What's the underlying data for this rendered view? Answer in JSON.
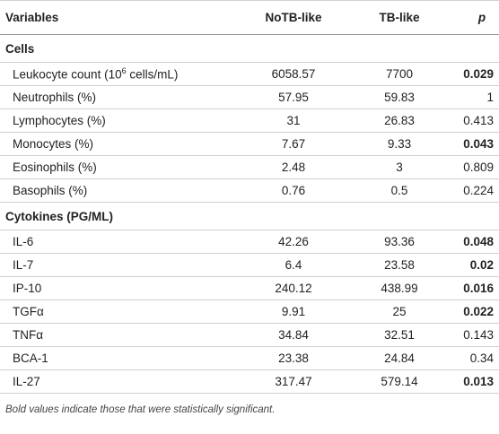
{
  "header": {
    "variable": "Variables",
    "notb": "NoTB-like",
    "tb": "TB-like",
    "p": "p"
  },
  "sections": [
    {
      "title": "Cells",
      "rows": [
        {
          "variable": {
            "text": "Leukocyte count (10",
            "sup": "6",
            "after": " cells/mL)"
          },
          "notb": "6058.57",
          "tb": "7700",
          "p": "0.029",
          "p_bold": true
        },
        {
          "variable": "Neutrophils (%)",
          "notb": "57.95",
          "tb": "59.83",
          "p": "1",
          "p_bold": false
        },
        {
          "variable": "Lymphocytes (%)",
          "notb": "31",
          "tb": "26.83",
          "p": "0.413",
          "p_bold": false
        },
        {
          "variable": "Monocytes (%)",
          "notb": "7.67",
          "tb": "9.33",
          "p": "0.043",
          "p_bold": true
        },
        {
          "variable": "Eosinophils (%)",
          "notb": "2.48",
          "tb": "3",
          "p": "0.809",
          "p_bold": false
        },
        {
          "variable": "Basophils (%)",
          "notb": "0.76",
          "tb": "0.5",
          "p": "0.224",
          "p_bold": false
        }
      ]
    },
    {
      "title": "Cytokines (PG/ML)",
      "rows": [
        {
          "variable": "IL-6",
          "notb": "42.26",
          "tb": "93.36",
          "p": "0.048",
          "p_bold": true
        },
        {
          "variable": "IL-7",
          "notb": "6.4",
          "tb": "23.58",
          "p": "0.02",
          "p_bold": true
        },
        {
          "variable": "IP-10",
          "notb": "240.12",
          "tb": "438.99",
          "p": "0.016",
          "p_bold": true
        },
        {
          "variable": "TGFα",
          "notb": "9.91",
          "tb": "25",
          "p": "0.022",
          "p_bold": true
        },
        {
          "variable": "TNFα",
          "notb": "34.84",
          "tb": "32.51",
          "p": "0.143",
          "p_bold": false
        },
        {
          "variable": "BCA-1",
          "notb": "23.38",
          "tb": "24.84",
          "p": "0.34",
          "p_bold": false
        },
        {
          "variable": "IL-27",
          "notb": "317.47",
          "tb": "579.14",
          "p": "0.013",
          "p_bold": true
        }
      ]
    }
  ],
  "footnote": "Bold values indicate those that were statistically significant."
}
